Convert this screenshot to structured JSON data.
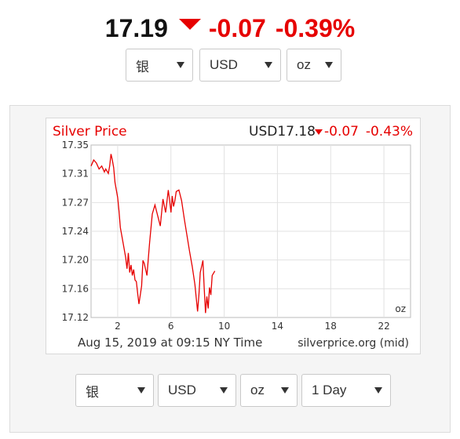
{
  "ticker": {
    "price": "17.19",
    "change": "-0.07",
    "percent": "-0.39%",
    "down_color": "#e60000"
  },
  "top_selects": {
    "metal": "银",
    "currency": "USD",
    "unit": "oz"
  },
  "chart_data": {
    "type": "line",
    "title": "Silver Price",
    "header_right": {
      "currency_price": "USD17.18",
      "change": "-0.07",
      "percent": "-0.43%"
    },
    "unit_label": "oz",
    "footer_left": "Aug 15, 2019 at 09:15 NY Time",
    "footer_right": "silverprice.org (mid)",
    "y_ticks": [
      "17.35",
      "17.31",
      "17.27",
      "17.24",
      "17.20",
      "17.16",
      "17.12"
    ],
    "x_ticks": [
      "2",
      "6",
      "10",
      "14",
      "18",
      "22"
    ],
    "xlim": [
      0,
      24
    ],
    "ylim": [
      17.12,
      17.35
    ],
    "grid": true,
    "line_color": "#e60000",
    "series": [
      {
        "x": [
          0.0,
          0.2,
          0.4,
          0.6,
          0.8,
          1.0,
          1.1,
          1.3,
          1.4,
          1.5,
          1.6,
          1.7,
          1.8,
          2.0,
          2.1,
          2.2,
          2.4,
          2.6,
          2.7,
          2.8,
          2.9,
          3.0,
          3.1,
          3.2,
          3.3,
          3.4,
          3.5,
          3.6,
          3.8,
          3.9,
          4.0,
          4.2,
          4.4,
          4.6,
          4.8,
          5.0,
          5.2,
          5.4,
          5.6,
          5.8,
          5.9,
          6.0,
          6.1,
          6.2,
          6.3,
          6.4,
          6.6,
          6.8,
          7.0,
          7.2,
          7.4,
          7.6,
          7.8,
          8.0,
          8.1,
          8.2,
          8.3,
          8.4,
          8.5,
          8.6,
          8.7,
          8.8,
          8.9,
          9.0,
          9.1,
          9.3
        ],
        "y": [
          17.322,
          17.33,
          17.326,
          17.318,
          17.322,
          17.314,
          17.318,
          17.312,
          17.322,
          17.338,
          17.33,
          17.32,
          17.3,
          17.28,
          17.262,
          17.24,
          17.22,
          17.2,
          17.185,
          17.206,
          17.18,
          17.19,
          17.176,
          17.184,
          17.17,
          17.168,
          17.152,
          17.138,
          17.162,
          17.196,
          17.192,
          17.176,
          17.22,
          17.258,
          17.27,
          17.256,
          17.242,
          17.278,
          17.26,
          17.29,
          17.276,
          17.26,
          17.282,
          17.268,
          17.276,
          17.288,
          17.29,
          17.276,
          17.252,
          17.23,
          17.208,
          17.188,
          17.164,
          17.128,
          17.15,
          17.18,
          17.188,
          17.196,
          17.16,
          17.126,
          17.148,
          17.132,
          17.16,
          17.15,
          17.176,
          17.182
        ]
      }
    ]
  },
  "bottom_selects": {
    "metal": "银",
    "currency": "USD",
    "unit": "oz",
    "range": "1 Day"
  }
}
